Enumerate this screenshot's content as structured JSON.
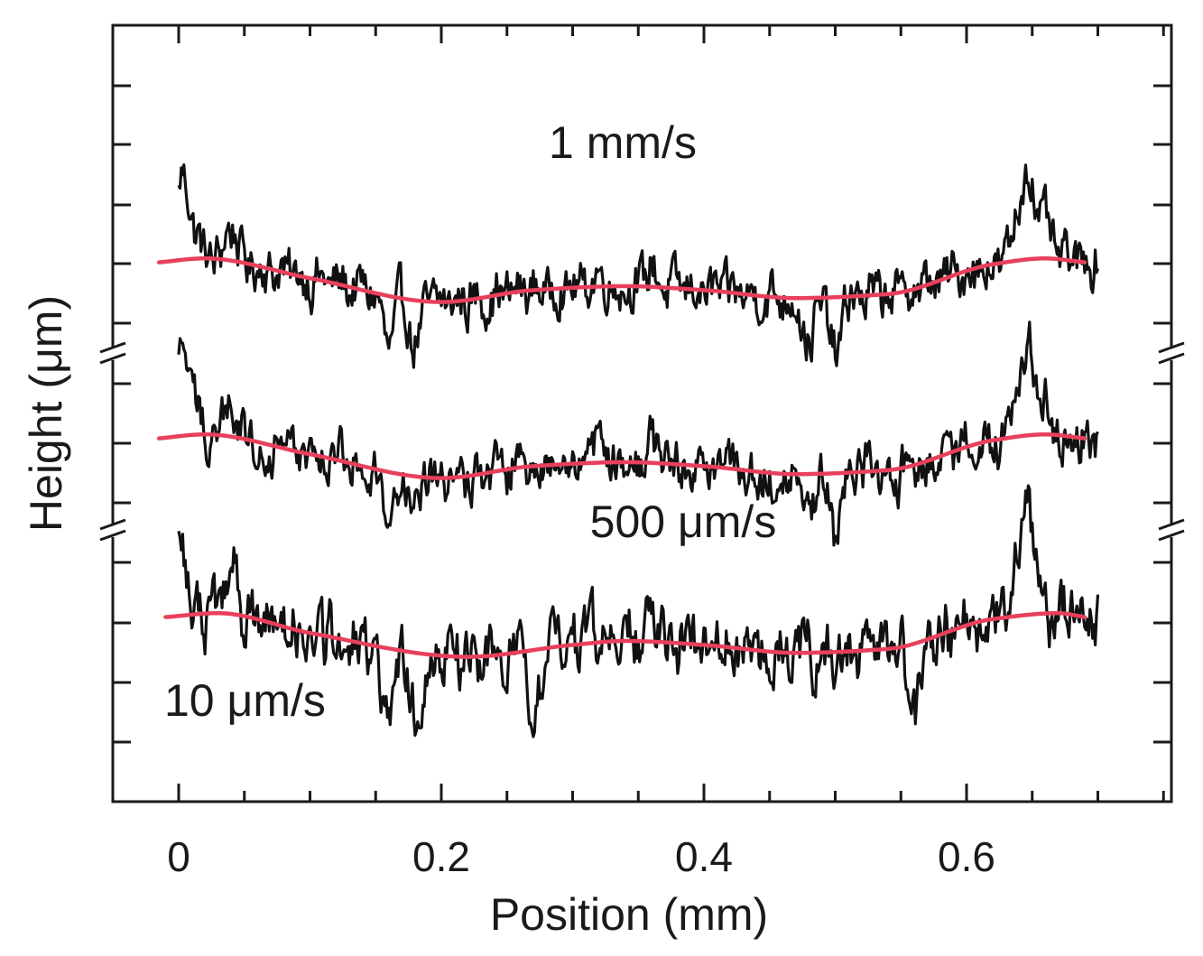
{
  "chart_data": {
    "type": "line",
    "title": "",
    "xlabel": "Position (mm)",
    "ylabel": "Height (μm)",
    "xlim": [
      -0.05,
      0.75
    ],
    "x_ticks": [
      0,
      0.2,
      0.4,
      0.6
    ],
    "x_tick_labels": [
      "0",
      "0.2",
      "0.4",
      "0.6"
    ],
    "x_minor_step": 0.05,
    "y_axis_break": true,
    "y_tick_labels_shown": false,
    "grid": false,
    "colors": {
      "raw_profile": "#111111",
      "fit": "#e8405c",
      "axis": "#1a1a1a"
    },
    "series": [
      {
        "name": "1 mm/s",
        "label": "1 mm/s",
        "roughness_amplitude": 0.45,
        "fit": {
          "x": [
            -0.015,
            0.02,
            0.1,
            0.2,
            0.27,
            0.34,
            0.4,
            0.47,
            0.54,
            0.62,
            0.66,
            0.69
          ],
          "y": [
            0.1,
            0.2,
            -0.3,
            -0.9,
            -0.6,
            -0.5,
            -0.6,
            -0.8,
            -0.7,
            0.05,
            0.2,
            0.1
          ]
        },
        "profile_features": {
          "x": [
            0.0,
            0.004,
            0.012,
            0.04,
            0.16,
            0.18,
            0.32,
            0.36,
            0.48,
            0.5,
            0.64,
            0.648,
            0.66,
            0.7
          ],
          "y": [
            0.7,
            1.5,
            0.6,
            0.9,
            -1.3,
            -1.1,
            0.3,
            0.5,
            -1.2,
            -1.5,
            1.2,
            2.0,
            0.9,
            0.1
          ]
        }
      },
      {
        "name": "500 μm/s",
        "label": "500 μm/s",
        "roughness_amplitude": 0.45,
        "fit": {
          "x": [
            -0.015,
            0.02,
            0.1,
            0.2,
            0.27,
            0.34,
            0.4,
            0.47,
            0.54,
            0.62,
            0.66,
            0.69
          ],
          "y": [
            0.1,
            0.2,
            -0.3,
            -0.9,
            -0.6,
            -0.5,
            -0.6,
            -0.8,
            -0.7,
            0.05,
            0.2,
            0.1
          ]
        },
        "profile_features": {
          "x": [
            0.0,
            0.004,
            0.012,
            0.04,
            0.16,
            0.18,
            0.32,
            0.36,
            0.48,
            0.5,
            0.64,
            0.648,
            0.66,
            0.7
          ],
          "y": [
            0.7,
            1.5,
            0.6,
            0.9,
            -1.3,
            -1.1,
            0.3,
            0.5,
            -1.2,
            -1.5,
            1.2,
            2.0,
            0.9,
            0.0
          ]
        }
      },
      {
        "name": "10 μm/s",
        "label": "10 μm/s",
        "roughness_amplitude": 0.55,
        "fit": {
          "x": [
            -0.01,
            0.03,
            0.1,
            0.22,
            0.3,
            0.34,
            0.4,
            0.47,
            0.54,
            0.62,
            0.67,
            0.69
          ],
          "y": [
            0.1,
            0.2,
            -0.3,
            -0.9,
            -0.6,
            -0.5,
            -0.6,
            -0.8,
            -0.7,
            0.05,
            0.2,
            0.1
          ]
        },
        "profile_features": {
          "x": [
            0.0,
            0.004,
            0.04,
            0.16,
            0.18,
            0.27,
            0.32,
            0.36,
            0.56,
            0.64,
            0.648,
            0.7
          ],
          "y": [
            1.5,
            0.5,
            1.5,
            -2.0,
            -1.3,
            -1.5,
            0.4,
            0.6,
            -1.8,
            1.5,
            2.2,
            0.0
          ]
        }
      }
    ]
  }
}
